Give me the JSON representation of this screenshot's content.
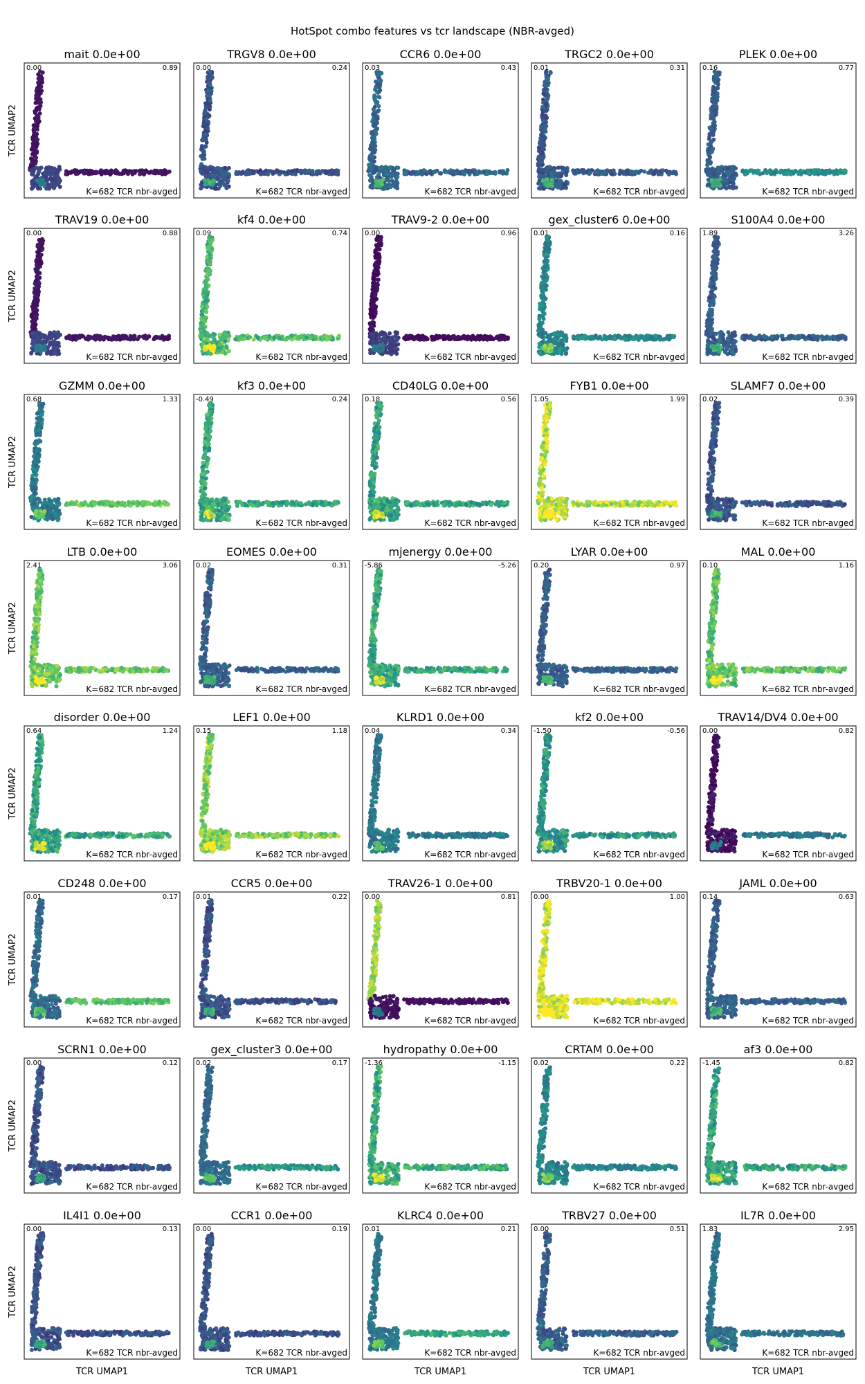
{
  "figure": {
    "suptitle": "HotSpot combo features vs tcr landscape (NBR-avged)",
    "xlabel": "TCR UMAP1",
    "ylabel": "TCR UMAP2",
    "panel_note": "K=682 TCR nbr-avged"
  },
  "chart_data": {
    "type": "scatter",
    "grid": false,
    "colormap": "viridis",
    "colormap_stops": [
      "#440154",
      "#3b528b",
      "#21918c",
      "#5ec962",
      "#fde725"
    ],
    "axis_ticks": false,
    "panels": [
      {
        "feature": "mait",
        "title": "mait 0.0e+00",
        "vmin": "0.00",
        "vmax": "0.89",
        "pattern": "low",
        "lvl": 0.06
      },
      {
        "feature": "TRGV8",
        "title": "TRGV8 0.0e+00",
        "vmin": "0.00",
        "vmax": "0.24",
        "pattern": "uniform",
        "lvl": 0.26
      },
      {
        "feature": "CCR6",
        "title": "CCR6 0.0e+00",
        "vmin": "0.03",
        "vmax": "0.43",
        "pattern": "uniform",
        "lvl": 0.32
      },
      {
        "feature": "TRGC2",
        "title": "TRGC2 0.0e+00",
        "vmin": "0.01",
        "vmax": "0.31",
        "pattern": "uniform",
        "lvl": 0.28
      },
      {
        "feature": "PLEK",
        "title": "PLEK 0.0e+00",
        "vmin": "0.16",
        "vmax": "0.77",
        "pattern": "horiz_mid",
        "lvl": 0.3
      },
      {
        "feature": "TRAV19",
        "title": "TRAV19 0.0e+00",
        "vmin": "0.00",
        "vmax": "0.88",
        "pattern": "low",
        "lvl": 0.06
      },
      {
        "feature": "kf4",
        "title": "kf4 0.0e+00",
        "vmin": "0.09",
        "vmax": "0.74",
        "pattern": "high",
        "lvl": 0.68
      },
      {
        "feature": "TRAV9-2",
        "title": "TRAV9-2 0.0e+00",
        "vmin": "0.00",
        "vmax": "0.96",
        "pattern": "low",
        "lvl": 0.04
      },
      {
        "feature": "gex_cluster6",
        "title": "gex_cluster6 0.0e+00",
        "vmin": "0.01",
        "vmax": "0.16",
        "pattern": "uniform",
        "lvl": 0.45
      },
      {
        "feature": "S100A4",
        "title": "S100A4 0.0e+00",
        "vmin": "1.89",
        "vmax": "3.26",
        "pattern": "uniform",
        "lvl": 0.3
      },
      {
        "feature": "GZMM",
        "title": "GZMM 0.0e+00",
        "vmin": "0.68",
        "vmax": "1.33",
        "pattern": "horiz_high",
        "lvl": 0.4
      },
      {
        "feature": "kf3",
        "title": "kf3 0.0e+00",
        "vmin": "-0.49",
        "vmax": "0.24",
        "pattern": "high",
        "lvl": 0.6
      },
      {
        "feature": "CD40LG",
        "title": "CD40LG 0.0e+00",
        "vmin": "0.18",
        "vmax": "0.56",
        "pattern": "high",
        "lvl": 0.58
      },
      {
        "feature": "FYB1",
        "title": "FYB1 0.0e+00",
        "vmin": "1.05",
        "vmax": "1.99",
        "pattern": "high",
        "lvl": 0.9
      },
      {
        "feature": "SLAMF7",
        "title": "SLAMF7 0.0e+00",
        "vmin": "0.02",
        "vmax": "0.39",
        "pattern": "uniform",
        "lvl": 0.26
      },
      {
        "feature": "LTB",
        "title": "LTB 0.0e+00",
        "vmin": "2.41",
        "vmax": "3.06",
        "pattern": "high",
        "lvl": 0.75
      },
      {
        "feature": "EOMES",
        "title": "EOMES 0.0e+00",
        "vmin": "0.02",
        "vmax": "0.31",
        "pattern": "uniform",
        "lvl": 0.3
      },
      {
        "feature": "mjenergy",
        "title": "mjenergy 0.0e+00",
        "vmin": "-5.86",
        "vmax": "-5.26",
        "pattern": "high",
        "lvl": 0.6
      },
      {
        "feature": "LYAR",
        "title": "LYAR 0.0e+00",
        "vmin": "0.20",
        "vmax": "0.97",
        "pattern": "uniform",
        "lvl": 0.3
      },
      {
        "feature": "MAL",
        "title": "MAL 0.0e+00",
        "vmin": "0.10",
        "vmax": "1.16",
        "pattern": "high",
        "lvl": 0.72
      },
      {
        "feature": "disorder",
        "title": "disorder 0.0e+00",
        "vmin": "0.64",
        "vmax": "1.24",
        "pattern": "high",
        "lvl": 0.58
      },
      {
        "feature": "LEF1",
        "title": "LEF1 0.0e+00",
        "vmin": "0.15",
        "vmax": "1.18",
        "pattern": "high",
        "lvl": 0.8
      },
      {
        "feature": "KLRD1",
        "title": "KLRD1 0.0e+00",
        "vmin": "0.04",
        "vmax": "0.34",
        "pattern": "uniform",
        "lvl": 0.4
      },
      {
        "feature": "kf2",
        "title": "kf2 0.0e+00",
        "vmin": "-1.50",
        "vmax": "-0.56",
        "pattern": "high",
        "lvl": 0.52
      },
      {
        "feature": "TRAV14/DV4",
        "title": "TRAV14/DV4 0.0e+00",
        "vmin": "0.00",
        "vmax": "0.82",
        "pattern": "horiz_high",
        "lvl": 0.04
      },
      {
        "feature": "CD248",
        "title": "CD248 0.0e+00",
        "vmin": "0.01",
        "vmax": "0.17",
        "pattern": "horiz_high",
        "lvl": 0.35
      },
      {
        "feature": "CCR5",
        "title": "CCR5 0.0e+00",
        "vmin": "0.01",
        "vmax": "0.22",
        "pattern": "uniform",
        "lvl": 0.25
      },
      {
        "feature": "TRAV26-1",
        "title": "TRAV26-1 0.0e+00",
        "vmin": "0.00",
        "vmax": "0.81",
        "pattern": "vert_high",
        "lvl": 0.05
      },
      {
        "feature": "TRBV20-1",
        "title": "TRBV20-1 0.0e+00",
        "vmin": "0.00",
        "vmax": "1.00",
        "pattern": "high",
        "lvl": 0.95
      },
      {
        "feature": "JAML",
        "title": "JAML 0.0e+00",
        "vmin": "0.14",
        "vmax": "0.63",
        "pattern": "uniform",
        "lvl": 0.3
      },
      {
        "feature": "SCRN1",
        "title": "SCRN1 0.0e+00",
        "vmin": "0.00",
        "vmax": "0.12",
        "pattern": "uniform",
        "lvl": 0.25
      },
      {
        "feature": "gex_cluster3",
        "title": "gex_cluster3 0.0e+00",
        "vmin": "0.02",
        "vmax": "0.17",
        "pattern": "horiz_mid",
        "lvl": 0.35
      },
      {
        "feature": "hydropathy",
        "title": "hydropathy 0.0e+00",
        "vmin": "-1.36",
        "vmax": "-1.15",
        "pattern": "high",
        "lvl": 0.62
      },
      {
        "feature": "CRTAM",
        "title": "CRTAM 0.0e+00",
        "vmin": "0.02",
        "vmax": "0.22",
        "pattern": "uniform",
        "lvl": 0.45
      },
      {
        "feature": "af3",
        "title": "af3 0.0e+00",
        "vmin": "-1.45",
        "vmax": "0.82",
        "pattern": "high",
        "lvl": 0.58
      },
      {
        "feature": "IL4I1",
        "title": "IL4I1 0.0e+00",
        "vmin": "0.00",
        "vmax": "0.13",
        "pattern": "uniform",
        "lvl": 0.25
      },
      {
        "feature": "CCR1",
        "title": "CCR1 0.0e+00",
        "vmin": "0.00",
        "vmax": "0.19",
        "pattern": "uniform",
        "lvl": 0.25
      },
      {
        "feature": "KLRC4",
        "title": "KLRC4 0.0e+00",
        "vmin": "0.01",
        "vmax": "0.21",
        "pattern": "horiz_mid",
        "lvl": 0.4
      },
      {
        "feature": "TRBV27",
        "title": "TRBV27 0.0e+00",
        "vmin": "0.00",
        "vmax": "0.51",
        "pattern": "uniform",
        "lvl": 0.3
      },
      {
        "feature": "IL7R",
        "title": "IL7R 0.0e+00",
        "vmin": "1.83",
        "vmax": "2.95",
        "pattern": "uniform",
        "lvl": 0.38
      }
    ]
  }
}
